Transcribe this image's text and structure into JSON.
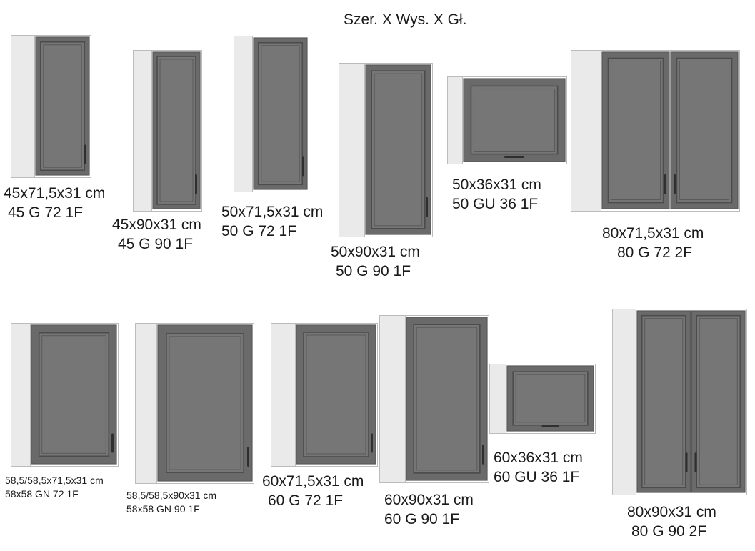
{
  "header": "Szer. X Wys. X Gł.",
  "colors": {
    "door": "#6a6a6a",
    "door_frame": "#5a5a5a",
    "panel": "#767676",
    "carcass_front": "#ffffff",
    "carcass_side": "#eaeaea",
    "outline": "#bcbcbc",
    "handle": "#2f2f2f"
  },
  "cabinets": [
    {
      "dims": "45x71,5x31 cm",
      "code": "45 G 72 1F"
    },
    {
      "dims": "45x90x31 cm",
      "code": "45 G 90 1F"
    },
    {
      "dims": "50x71,5x31 cm",
      "code": "50 G 72 1F"
    },
    {
      "dims": "50x90x31 cm",
      "code": "50 G 90 1F"
    },
    {
      "dims": "50x36x31 cm",
      "code": "50 GU 36 1F"
    },
    {
      "dims": "80x71,5x31 cm",
      "code": "80 G 72 2F"
    },
    {
      "dims": "58,5/58,5x71,5x31 cm",
      "code": "58x58 GN 72 1F"
    },
    {
      "dims": "58,5/58,5x90x31 cm",
      "code": "58x58 GN 90 1F"
    },
    {
      "dims": "60x71,5x31 cm",
      "code": "60 G 72 1F"
    },
    {
      "dims": "60x90x31 cm",
      "code": "60 G 90 1F"
    },
    {
      "dims": "60x36x31 cm",
      "code": "60 GU 36 1F"
    },
    {
      "dims": "80x90x31 cm",
      "code": "80 G 90 2F"
    }
  ]
}
